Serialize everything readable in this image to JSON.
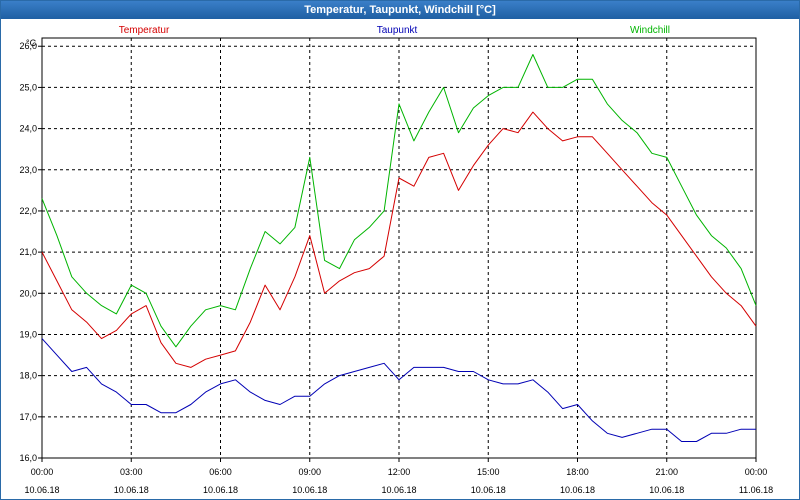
{
  "window": {
    "title": "Temperatur, Taupunkt, Windchill [°C]"
  },
  "chart_data": {
    "type": "line",
    "title": "Temperatur, Taupunkt, Windchill [°C]",
    "ylabel": "°C",
    "ylim": [
      16.0,
      26.2
    ],
    "yticks": [
      "16,0",
      "17,0",
      "18,0",
      "19,0",
      "20,0",
      "21,0",
      "22,0",
      "23,0",
      "24,0",
      "25,0",
      "26,0"
    ],
    "xlim": [
      0,
      24
    ],
    "xticks": [
      {
        "time": "00:00",
        "date": "10.06.18"
      },
      {
        "time": "03:00",
        "date": "10.06.18"
      },
      {
        "time": "06:00",
        "date": "10.06.18"
      },
      {
        "time": "09:00",
        "date": "10.06.18"
      },
      {
        "time": "12:00",
        "date": "10.06.18"
      },
      {
        "time": "15:00",
        "date": "10.06.18"
      },
      {
        "time": "18:00",
        "date": "10.06.18"
      },
      {
        "time": "21:00",
        "date": "10.06.18"
      },
      {
        "time": "00:00",
        "date": "11.06.18"
      }
    ],
    "grid": true,
    "legend_position": "top",
    "x_hours": [
      0,
      0.5,
      1,
      1.5,
      2,
      2.5,
      3,
      3.5,
      4,
      4.5,
      5,
      5.5,
      6,
      6.5,
      7,
      7.5,
      8,
      8.5,
      9,
      9.5,
      10,
      10.5,
      11,
      11.5,
      12,
      12.5,
      13,
      13.5,
      14,
      14.5,
      15,
      15.5,
      16,
      16.5,
      17,
      17.5,
      18,
      18.5,
      19,
      19.5,
      20,
      20.5,
      21,
      21.5,
      22,
      22.5,
      23,
      23.5,
      24
    ],
    "series": [
      {
        "name": "Temperatur",
        "color": "#d40000",
        "values": [
          21.0,
          20.3,
          19.6,
          19.3,
          18.9,
          19.1,
          19.5,
          19.7,
          18.8,
          18.3,
          18.2,
          18.4,
          18.5,
          18.6,
          19.3,
          20.2,
          19.6,
          20.4,
          21.4,
          20.0,
          20.3,
          20.5,
          20.6,
          20.9,
          22.8,
          22.6,
          23.3,
          23.4,
          22.5,
          23.1,
          23.6,
          24.0,
          23.9,
          24.4,
          24.0,
          23.7,
          23.8,
          23.8,
          23.4,
          23.0,
          22.6,
          22.2,
          21.9,
          21.4,
          20.9,
          20.4,
          20.0,
          19.7,
          19.2
        ]
      },
      {
        "name": "Taupunkt",
        "color": "#0000b4",
        "values": [
          18.9,
          18.5,
          18.1,
          18.2,
          17.8,
          17.6,
          17.3,
          17.3,
          17.1,
          17.1,
          17.3,
          17.6,
          17.8,
          17.9,
          17.6,
          17.4,
          17.3,
          17.5,
          17.5,
          17.8,
          18.0,
          18.1,
          18.2,
          18.3,
          17.9,
          18.2,
          18.2,
          18.2,
          18.1,
          18.1,
          17.9,
          17.8,
          17.8,
          17.9,
          17.6,
          17.2,
          17.3,
          16.9,
          16.6,
          16.5,
          16.6,
          16.7,
          16.7,
          16.4,
          16.4,
          16.6,
          16.6,
          16.7,
          16.7
        ]
      },
      {
        "name": "Windchill",
        "color": "#00b400",
        "values": [
          22.3,
          21.4,
          20.4,
          20.0,
          19.7,
          19.5,
          20.2,
          20.0,
          19.2,
          18.7,
          19.2,
          19.6,
          19.7,
          19.6,
          20.6,
          21.5,
          21.2,
          21.6,
          23.3,
          20.8,
          20.6,
          21.3,
          21.6,
          22.0,
          24.6,
          23.7,
          24.4,
          25.0,
          23.9,
          24.5,
          24.8,
          25.0,
          25.0,
          25.8,
          25.0,
          25.0,
          25.2,
          25.2,
          24.6,
          24.2,
          23.9,
          23.4,
          23.3,
          22.6,
          21.9,
          21.4,
          21.1,
          20.6,
          19.7
        ]
      }
    ]
  }
}
